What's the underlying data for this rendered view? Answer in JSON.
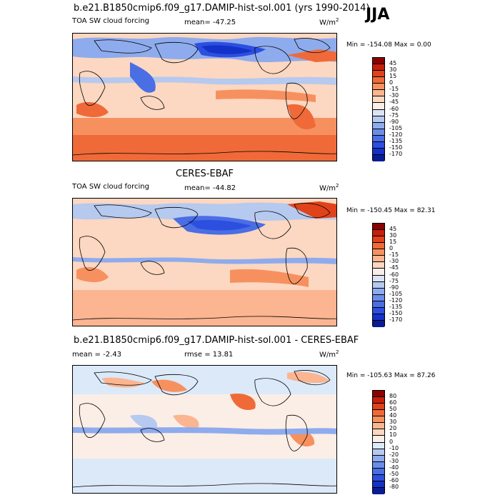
{
  "season": "JJA",
  "panels": [
    {
      "title": "b.e21.B1850cmip6.f09_g17.DAMIP-hist-sol.001 (yrs 1990-2014)",
      "left_label": "TOA SW cloud forcing",
      "center_label": "mean= -47.25",
      "units": "W/m",
      "units_sup": "2",
      "minmax": "Min = -154.08 Max =   0.00",
      "colorbar_labels": [
        "45",
        "30",
        "15",
        "0",
        "-15",
        "-30",
        "-45",
        "-60",
        "-75",
        "-90",
        "-105",
        "-120",
        "-135",
        "-150",
        "-170"
      ]
    },
    {
      "title": "CERES-EBAF",
      "left_label": "TOA SW cloud forcing",
      "center_label": "mean= -44.82",
      "units": "W/m",
      "units_sup": "2",
      "minmax": "Min = -150.45 Max = 82.31",
      "colorbar_labels": [
        "45",
        "30",
        "15",
        "0",
        "-15",
        "-30",
        "-45",
        "-60",
        "-75",
        "-90",
        "-105",
        "-120",
        "-135",
        "-150",
        "-170"
      ]
    },
    {
      "title": "b.e21.B1850cmip6.f09_g17.DAMIP-hist-sol.001 - CERES-EBAF",
      "left_label": "mean =  -2.43",
      "center_label": "rmse =  13.81",
      "units": "W/m",
      "units_sup": "2",
      "minmax": "Min = -105.63 Max = 87.26",
      "colorbar_labels": [
        "80",
        "60",
        "50",
        "40",
        "30",
        "20",
        "10",
        "0",
        "-10",
        "-20",
        "-30",
        "-40",
        "-50",
        "-60",
        "-80"
      ]
    }
  ],
  "colors": {
    "forcing_scale": [
      "#8b0000",
      "#c81e0c",
      "#e0421a",
      "#ef6a38",
      "#f6915f",
      "#fbb591",
      "#fcd7c1",
      "#fbeee6",
      "#dbe4f5",
      "#b6c9ef",
      "#8eabed",
      "#6a8de8",
      "#4a6ee4",
      "#2d4fe0",
      "#1432c8",
      "#091c96"
    ],
    "diff_scale": [
      "#8b0000",
      "#c81e0c",
      "#e0421a",
      "#ef6a38",
      "#f6915f",
      "#fbb591",
      "#fcd7c1",
      "#fbeee6",
      "#dbe9f9",
      "#b6c9ef",
      "#8eabed",
      "#6a8de8",
      "#4a6ee4",
      "#2d4fe0",
      "#1432c8",
      "#091c96"
    ]
  }
}
